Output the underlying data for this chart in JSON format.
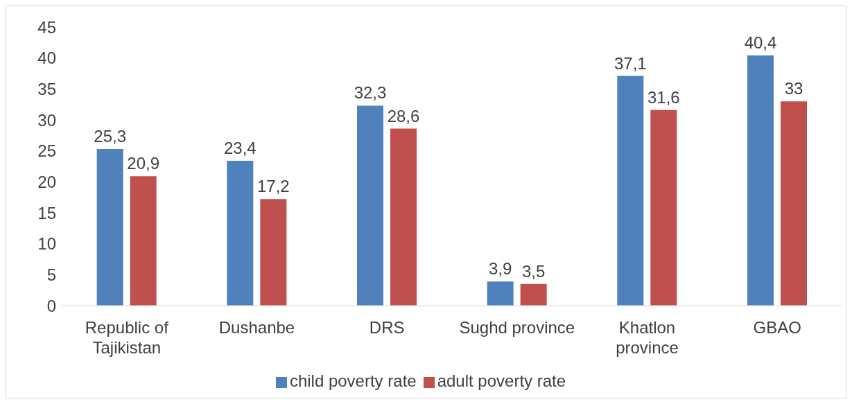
{
  "chart_data": {
    "type": "bar",
    "categories": [
      "Republic of Tajikistan",
      "Dushanbe",
      "DRS",
      "Sughd province",
      "Khatlon province",
      "GBAO"
    ],
    "series": [
      {
        "name": "child poverty rate",
        "color": "#4f81bd",
        "values": [
          25.3,
          23.4,
          32.3,
          3.9,
          37.1,
          40.4
        ],
        "value_labels": [
          "25,3",
          "23,4",
          "32,3",
          "3,9",
          "37,1",
          "40,4"
        ]
      },
      {
        "name": "adult poverty rate",
        "color": "#c0504d",
        "values": [
          20.9,
          17.2,
          28.6,
          3.5,
          31.6,
          33
        ],
        "value_labels": [
          "20,9",
          "17,2",
          "28,6",
          "3,5",
          "31,6",
          "33"
        ]
      }
    ],
    "ylim": [
      0,
      45
    ],
    "yticks": [
      0,
      5,
      10,
      15,
      20,
      25,
      30,
      35,
      40,
      45
    ],
    "grid": false,
    "legend": "bottom"
  }
}
